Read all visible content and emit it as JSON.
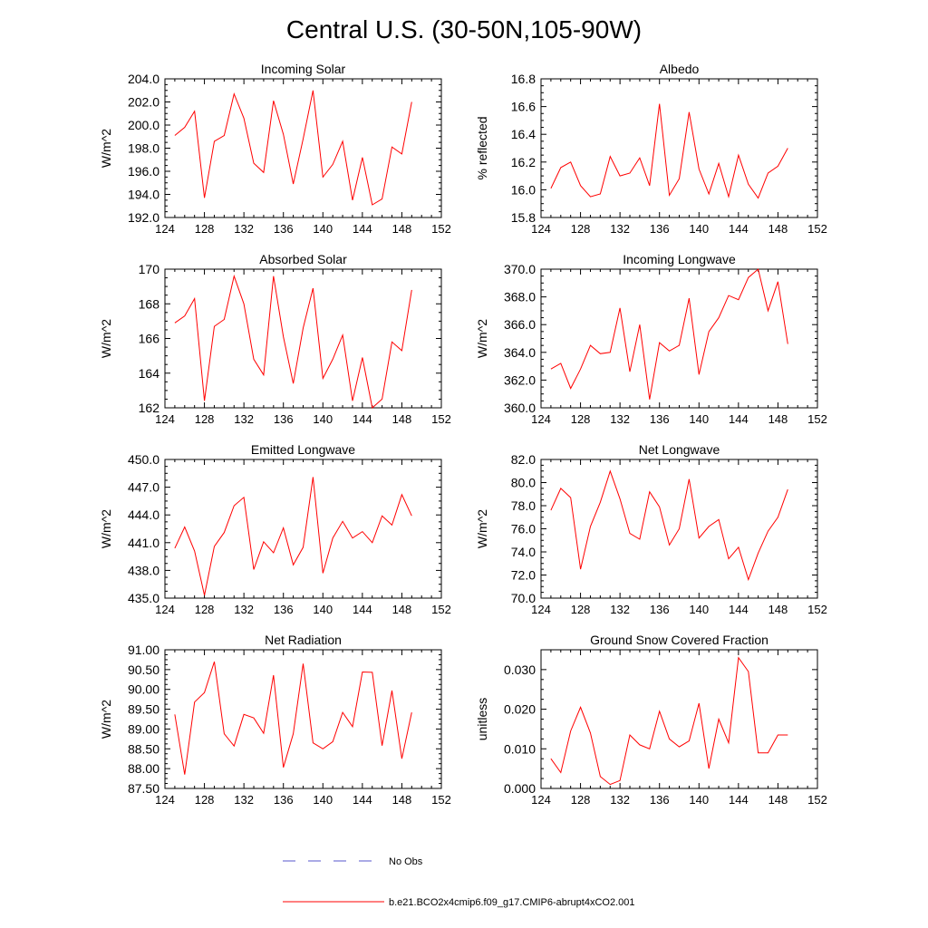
{
  "figure": {
    "title": "Central U.S. (30-50N,105-90W)",
    "line_color": "#ff0000",
    "obs_color": "#5555cc",
    "legend": [
      {
        "label": "No Obs",
        "style": "dashed"
      },
      {
        "label": "b.e21.BCO2x4cmip6.f09_g17.CMIP6-abrupt4xCO2.001",
        "style": "solid"
      }
    ]
  },
  "chart_data": [
    {
      "type": "line",
      "title": "Incoming Solar",
      "ylabel": "W/m^2",
      "xlim": [
        124,
        152
      ],
      "ylim": [
        192,
        204
      ],
      "xticks": [
        124,
        128,
        132,
        136,
        140,
        144,
        148,
        152
      ],
      "xtick_labels": [
        "124",
        "128",
        "132",
        "136",
        "140",
        "144",
        "148",
        "152"
      ],
      "yticks": [
        192,
        194,
        196,
        198,
        200,
        202,
        204
      ],
      "ytick_labels": [
        "192.0",
        "194.0",
        "196.0",
        "198.0",
        "200.0",
        "202.0",
        "204.0"
      ],
      "x": [
        125,
        126,
        127,
        128,
        129,
        130,
        131,
        132,
        133,
        134,
        135,
        136,
        137,
        138,
        139,
        140,
        141,
        142,
        143,
        144,
        145,
        146,
        147,
        148,
        149
      ],
      "values": [
        199.1,
        199.8,
        201.2,
        193.7,
        198.6,
        199.1,
        202.7,
        200.6,
        196.7,
        195.9,
        202.1,
        199.2,
        194.9,
        198.8,
        203.0,
        195.5,
        196.6,
        198.6,
        193.5,
        197.2,
        193.1,
        193.6,
        198.1,
        197.5,
        202.0
      ]
    },
    {
      "type": "line",
      "title": "Albedo",
      "ylabel": "% reflected",
      "xlim": [
        124,
        152
      ],
      "ylim": [
        15.8,
        16.8
      ],
      "xticks": [
        124,
        128,
        132,
        136,
        140,
        144,
        148,
        152
      ],
      "xtick_labels": [
        "124",
        "128",
        "132",
        "136",
        "140",
        "144",
        "148",
        "152"
      ],
      "yticks": [
        15.8,
        16.0,
        16.2,
        16.4,
        16.6,
        16.8
      ],
      "ytick_labels": [
        "15.8",
        "16.0",
        "16.2",
        "16.4",
        "16.6",
        "16.8"
      ],
      "x": [
        125,
        126,
        127,
        128,
        129,
        130,
        131,
        132,
        133,
        134,
        135,
        136,
        137,
        138,
        139,
        140,
        141,
        142,
        143,
        144,
        145,
        146,
        147,
        148,
        149
      ],
      "values": [
        16.01,
        16.16,
        16.2,
        16.03,
        15.95,
        15.97,
        16.24,
        16.1,
        16.12,
        16.23,
        16.03,
        16.62,
        15.96,
        16.08,
        16.56,
        16.15,
        15.97,
        16.19,
        15.95,
        16.25,
        16.04,
        15.94,
        16.12,
        16.17,
        16.3
      ]
    },
    {
      "type": "line",
      "title": "Absorbed Solar",
      "ylabel": "W/m^2",
      "xlim": [
        124,
        152
      ],
      "ylim": [
        162,
        170
      ],
      "xticks": [
        124,
        128,
        132,
        136,
        140,
        144,
        148,
        152
      ],
      "xtick_labels": [
        "124",
        "128",
        "132",
        "136",
        "140",
        "144",
        "148",
        "152"
      ],
      "yticks": [
        162,
        164,
        166,
        168,
        170
      ],
      "ytick_labels": [
        "162",
        "164",
        "166",
        "168",
        "170"
      ],
      "x": [
        125,
        126,
        127,
        128,
        129,
        130,
        131,
        132,
        133,
        134,
        135,
        136,
        137,
        138,
        139,
        140,
        141,
        142,
        143,
        144,
        145,
        146,
        147,
        148,
        149
      ],
      "values": [
        166.9,
        167.3,
        168.3,
        162.4,
        166.7,
        167.1,
        169.6,
        168.0,
        164.8,
        163.9,
        169.6,
        166.1,
        163.4,
        166.6,
        168.9,
        163.7,
        164.8,
        166.2,
        162.4,
        164.9,
        162.0,
        162.5,
        165.8,
        165.3,
        168.8
      ]
    },
    {
      "type": "line",
      "title": "Incoming Longwave",
      "ylabel": "W/m^2",
      "xlim": [
        124,
        152
      ],
      "ylim": [
        360,
        370
      ],
      "xticks": [
        124,
        128,
        132,
        136,
        140,
        144,
        148,
        152
      ],
      "xtick_labels": [
        "124",
        "128",
        "132",
        "136",
        "140",
        "144",
        "148",
        "152"
      ],
      "yticks": [
        360,
        362,
        364,
        366,
        368,
        370
      ],
      "ytick_labels": [
        "360.0",
        "362.0",
        "364.0",
        "366.0",
        "368.0",
        "370.0"
      ],
      "x": [
        125,
        126,
        127,
        128,
        129,
        130,
        131,
        132,
        133,
        134,
        135,
        136,
        137,
        138,
        139,
        140,
        141,
        142,
        143,
        144,
        145,
        146,
        147,
        148,
        149
      ],
      "values": [
        362.8,
        363.2,
        361.4,
        362.8,
        364.5,
        363.9,
        364.0,
        367.2,
        362.6,
        366.0,
        360.6,
        364.7,
        364.1,
        364.5,
        367.9,
        362.4,
        365.5,
        366.5,
        368.1,
        367.8,
        369.4,
        370.0,
        367.0,
        369.1,
        364.6
      ]
    },
    {
      "type": "line",
      "title": "Emitted Longwave",
      "ylabel": "W/m^2",
      "xlim": [
        124,
        152
      ],
      "ylim": [
        435,
        450
      ],
      "xticks": [
        124,
        128,
        132,
        136,
        140,
        144,
        148,
        152
      ],
      "xtick_labels": [
        "124",
        "128",
        "132",
        "136",
        "140",
        "144",
        "148",
        "152"
      ],
      "yticks": [
        435,
        438,
        441,
        444,
        447,
        450
      ],
      "ytick_labels": [
        "435.0",
        "438.0",
        "441.0",
        "444.0",
        "447.0",
        "450.0"
      ],
      "x": [
        125,
        126,
        127,
        128,
        129,
        130,
        131,
        132,
        133,
        134,
        135,
        136,
        137,
        138,
        139,
        140,
        141,
        142,
        143,
        144,
        145,
        146,
        147,
        148,
        149
      ],
      "values": [
        440.4,
        442.7,
        440.1,
        435.3,
        440.6,
        442.1,
        445.0,
        445.9,
        438.1,
        441.1,
        439.9,
        442.6,
        438.6,
        440.5,
        448.1,
        437.7,
        441.5,
        443.3,
        441.5,
        442.2,
        441.0,
        443.9,
        442.9,
        446.2,
        443.9
      ]
    },
    {
      "type": "line",
      "title": "Net Longwave",
      "ylabel": "W/m^2",
      "xlim": [
        124,
        152
      ],
      "ylim": [
        70,
        82
      ],
      "xticks": [
        124,
        128,
        132,
        136,
        140,
        144,
        148,
        152
      ],
      "xtick_labels": [
        "124",
        "128",
        "132",
        "136",
        "140",
        "144",
        "148",
        "152"
      ],
      "yticks": [
        70,
        72,
        74,
        76,
        78,
        80,
        82
      ],
      "ytick_labels": [
        "70.0",
        "72.0",
        "74.0",
        "76.0",
        "78.0",
        "80.0",
        "82.0"
      ],
      "x": [
        125,
        126,
        127,
        128,
        129,
        130,
        131,
        132,
        133,
        134,
        135,
        136,
        137,
        138,
        139,
        140,
        141,
        142,
        143,
        144,
        145,
        146,
        147,
        148,
        149
      ],
      "values": [
        77.6,
        79.5,
        78.7,
        72.5,
        76.2,
        78.3,
        81.0,
        78.6,
        75.6,
        75.1,
        79.2,
        77.9,
        74.6,
        76.0,
        80.3,
        75.2,
        76.2,
        76.8,
        73.4,
        74.4,
        71.6,
        73.9,
        75.8,
        77.0,
        79.4
      ]
    },
    {
      "type": "line",
      "title": "Net Radiation",
      "ylabel": "W/m^2",
      "xlim": [
        124,
        152
      ],
      "ylim": [
        87.5,
        91.0
      ],
      "xticks": [
        124,
        128,
        132,
        136,
        140,
        144,
        148,
        152
      ],
      "xtick_labels": [
        "124",
        "128",
        "132",
        "136",
        "140",
        "144",
        "148",
        "152"
      ],
      "yticks": [
        87.5,
        88.0,
        88.5,
        89.0,
        89.5,
        90.0,
        90.5,
        91.0
      ],
      "ytick_labels": [
        "87.50",
        "88.00",
        "88.50",
        "89.00",
        "89.50",
        "90.00",
        "90.50",
        "91.00"
      ],
      "x": [
        125,
        126,
        127,
        128,
        129,
        130,
        131,
        132,
        133,
        134,
        135,
        136,
        137,
        138,
        139,
        140,
        141,
        142,
        143,
        144,
        145,
        146,
        147,
        148,
        149
      ],
      "values": [
        89.37,
        87.85,
        89.68,
        89.92,
        90.7,
        88.88,
        88.57,
        89.37,
        89.28,
        88.89,
        90.36,
        88.03,
        88.88,
        90.65,
        88.65,
        88.5,
        88.68,
        89.42,
        89.06,
        90.44,
        90.43,
        88.58,
        89.97,
        88.25,
        89.42
      ]
    },
    {
      "type": "line",
      "title": "Ground Snow Covered Fraction",
      "ylabel": "unitless",
      "xlim": [
        124,
        152
      ],
      "ylim": [
        0,
        0.035
      ],
      "xticks": [
        124,
        128,
        132,
        136,
        140,
        144,
        148,
        152
      ],
      "xtick_labels": [
        "124",
        "128",
        "132",
        "136",
        "140",
        "144",
        "148",
        "152"
      ],
      "yticks": [
        0,
        0.01,
        0.02,
        0.03
      ],
      "ytick_labels": [
        "0.000",
        "0.010",
        "0.020",
        "0.030"
      ],
      "x": [
        125,
        126,
        127,
        128,
        129,
        130,
        131,
        132,
        133,
        134,
        135,
        136,
        137,
        138,
        139,
        140,
        141,
        142,
        143,
        144,
        145,
        146,
        147,
        148,
        149
      ],
      "values": [
        0.0075,
        0.004,
        0.0145,
        0.0205,
        0.014,
        0.003,
        0.001,
        0.002,
        0.0135,
        0.011,
        0.01,
        0.0195,
        0.0125,
        0.0105,
        0.012,
        0.0215,
        0.005,
        0.0175,
        0.0115,
        0.033,
        0.0295,
        0.009,
        0.009,
        0.0135,
        0.0135
      ]
    }
  ]
}
